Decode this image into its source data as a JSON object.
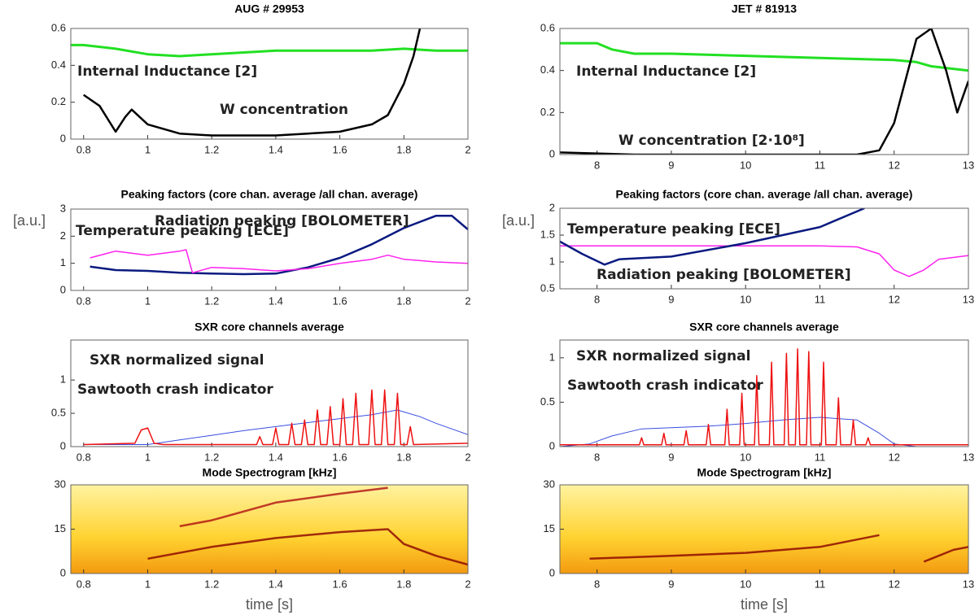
{
  "chart_data": [
    {
      "type": "line",
      "title": "AUG # 29953",
      "xlim": [
        0.76,
        2
      ],
      "xticks": [
        0.8,
        1,
        1.2,
        1.4,
        1.6,
        1.8,
        2
      ],
      "ylim": [
        0,
        0.6
      ],
      "yticks": [
        0,
        0.2,
        0.4,
        0.6
      ],
      "series": [
        {
          "name": "Internal Inductance [2]",
          "color": "#22e022",
          "x": [
            0.76,
            0.8,
            0.9,
            1.0,
            1.1,
            1.2,
            1.3,
            1.4,
            1.5,
            1.6,
            1.7,
            1.8,
            1.9,
            2.0
          ],
          "values": [
            0.51,
            0.51,
            0.49,
            0.46,
            0.45,
            0.46,
            0.47,
            0.48,
            0.48,
            0.48,
            0.48,
            0.49,
            0.48,
            0.48
          ]
        },
        {
          "name": "W concentration",
          "color": "#000000",
          "x": [
            0.8,
            0.85,
            0.9,
            0.93,
            0.95,
            1.0,
            1.1,
            1.2,
            1.3,
            1.4,
            1.5,
            1.6,
            1.7,
            1.75,
            1.8,
            1.83,
            1.85
          ],
          "values": [
            0.24,
            0.18,
            0.04,
            0.12,
            0.16,
            0.08,
            0.03,
            0.02,
            0.02,
            0.02,
            0.03,
            0.04,
            0.08,
            0.13,
            0.3,
            0.45,
            0.6
          ]
        }
      ]
    },
    {
      "type": "line",
      "title": "JET # 81913",
      "xlim": [
        7.5,
        13
      ],
      "xticks": [
        8,
        9,
        10,
        11,
        12,
        13
      ],
      "ylim": [
        0,
        0.6
      ],
      "yticks": [
        0,
        0.2,
        0.4,
        0.6
      ],
      "series": [
        {
          "name": "Internal Inductance [2]",
          "color": "#22e022",
          "x": [
            7.5,
            8.0,
            8.2,
            8.5,
            9,
            10,
            11,
            12,
            12.3,
            12.5,
            13
          ],
          "values": [
            0.53,
            0.53,
            0.5,
            0.48,
            0.48,
            0.47,
            0.46,
            0.45,
            0.44,
            0.42,
            0.4
          ]
        },
        {
          "name": "W concentration [2·10⁸]",
          "color": "#000000",
          "x": [
            7.5,
            8.5,
            9.5,
            10.5,
            11.5,
            11.8,
            12,
            12.3,
            12.5,
            12.7,
            12.85,
            13
          ],
          "values": [
            0.01,
            0.0,
            0.0,
            0.0,
            0.0,
            0.02,
            0.15,
            0.55,
            0.6,
            0.4,
            0.2,
            0.35
          ]
        }
      ]
    },
    {
      "type": "line",
      "title": "Peaking factors (core chan. average /all chan. average)",
      "ylabel": "[a.u.]",
      "xlim": [
        0.76,
        2
      ],
      "xticks": [
        0.8,
        1,
        1.2,
        1.4,
        1.6,
        1.8,
        2
      ],
      "ylim": [
        0,
        3
      ],
      "yticks": [
        0,
        1,
        2,
        3
      ],
      "series": [
        {
          "name": "Radiation peaking [BOLOMETER]",
          "color": "#0a1a80",
          "x": [
            0.82,
            0.9,
            1.0,
            1.1,
            1.2,
            1.3,
            1.4,
            1.5,
            1.6,
            1.7,
            1.8,
            1.9,
            1.95,
            2.0
          ],
          "values": [
            0.88,
            0.75,
            0.72,
            0.65,
            0.62,
            0.6,
            0.62,
            0.85,
            1.2,
            1.7,
            2.3,
            2.75,
            2.75,
            2.25
          ]
        },
        {
          "name": "Temperature peaking [ECE]",
          "color": "#ff22ee",
          "x": [
            0.82,
            0.9,
            1.0,
            1.1,
            1.12,
            1.14,
            1.2,
            1.3,
            1.4,
            1.5,
            1.6,
            1.7,
            1.75,
            1.8,
            1.9,
            2.0
          ],
          "values": [
            1.2,
            1.45,
            1.3,
            1.45,
            1.5,
            0.65,
            0.85,
            0.8,
            0.72,
            0.8,
            1.0,
            1.15,
            1.3,
            1.15,
            1.05,
            1.0
          ]
        }
      ]
    },
    {
      "type": "line",
      "title": "Peaking factors (core chan. average /all chan. average)",
      "ylabel": "[a.u.]",
      "xlim": [
        7.5,
        13
      ],
      "xticks": [
        8,
        9,
        10,
        11,
        12,
        13
      ],
      "ylim": [
        0.5,
        2
      ],
      "yticks": [
        0.5,
        1,
        1.5,
        2
      ],
      "series": [
        {
          "name": "Temperature peaking [ECE]",
          "color": "#ff22ee",
          "x": [
            7.5,
            8,
            10,
            11,
            11.5,
            11.8,
            12,
            12.2,
            12.4,
            12.6,
            13
          ],
          "values": [
            1.3,
            1.3,
            1.3,
            1.3,
            1.28,
            1.15,
            0.85,
            0.73,
            0.85,
            1.05,
            1.12
          ]
        },
        {
          "name": "Radiation peaking [BOLOMETER]",
          "color": "#0a1a80",
          "x": [
            7.5,
            7.8,
            8.1,
            8.3,
            9,
            10,
            11,
            11.6
          ],
          "values": [
            1.38,
            1.15,
            0.95,
            1.05,
            1.1,
            1.35,
            1.65,
            2.0
          ]
        }
      ]
    },
    {
      "type": "line",
      "title": "SXR core channels average",
      "xlim": [
        0.76,
        2
      ],
      "xticks": [
        0.8,
        1,
        1.2,
        1.4,
        1.6,
        1.8,
        2
      ],
      "ylim": [
        0,
        1.6
      ],
      "yticks": [
        0,
        0.5,
        1
      ],
      "series": [
        {
          "name": "SXR normalized signal",
          "color": "#3a4fe0",
          "x": [
            0.8,
            1.0,
            1.1,
            1.2,
            1.3,
            1.4,
            1.5,
            1.6,
            1.7,
            1.78,
            1.85,
            1.9,
            2.0
          ],
          "values": [
            0.03,
            0.03,
            0.1,
            0.17,
            0.24,
            0.3,
            0.36,
            0.42,
            0.48,
            0.55,
            0.45,
            0.35,
            0.18
          ]
        },
        {
          "name": "Sawtooth crash indicator",
          "color": "#ee1111",
          "x": [
            0.8,
            0.96,
            0.98,
            1.0,
            1.02,
            1.05,
            1.34,
            1.35,
            1.36,
            1.39,
            1.4,
            1.41,
            1.44,
            1.45,
            1.46,
            1.48,
            1.49,
            1.5,
            1.52,
            1.53,
            1.54,
            1.56,
            1.57,
            1.58,
            1.6,
            1.61,
            1.62,
            1.64,
            1.65,
            1.66,
            1.69,
            1.7,
            1.71,
            1.73,
            1.74,
            1.75,
            1.77,
            1.78,
            1.79,
            1.81,
            1.82,
            1.83,
            2.0
          ],
          "values": [
            0.03,
            0.05,
            0.25,
            0.28,
            0.05,
            0.03,
            0.03,
            0.15,
            0.03,
            0.03,
            0.28,
            0.03,
            0.03,
            0.35,
            0.03,
            0.03,
            0.4,
            0.03,
            0.03,
            0.55,
            0.03,
            0.03,
            0.6,
            0.03,
            0.03,
            0.72,
            0.03,
            0.03,
            0.8,
            0.03,
            0.03,
            0.85,
            0.03,
            0.03,
            0.85,
            0.03,
            0.03,
            0.8,
            0.03,
            0.03,
            0.3,
            0.03,
            0.05
          ]
        }
      ]
    },
    {
      "type": "line",
      "title": "SXR core channels average",
      "xlim": [
        7.5,
        13
      ],
      "xticks": [
        8,
        9,
        10,
        11,
        12,
        13
      ],
      "ylim": [
        0,
        1.2
      ],
      "yticks": [
        0,
        0.5,
        1
      ],
      "series": [
        {
          "name": "SXR normalized signal",
          "color": "#3a4fe0",
          "x": [
            7.5,
            7.9,
            8.2,
            8.6,
            9.5,
            10,
            10.5,
            11,
            11.5,
            11.8,
            12,
            12.3,
            13
          ],
          "values": [
            0,
            0.03,
            0.12,
            0.2,
            0.23,
            0.26,
            0.3,
            0.33,
            0.3,
            0.15,
            0.03,
            0,
            0
          ]
        },
        {
          "name": "Sawtooth crash indicator",
          "color": "#ee1111",
          "x": [
            7.5,
            8.57,
            8.6,
            8.63,
            8.87,
            8.9,
            8.93,
            9.17,
            9.2,
            9.23,
            9.47,
            9.5,
            9.53,
            9.72,
            9.75,
            9.78,
            9.92,
            9.95,
            9.98,
            10.12,
            10.15,
            10.18,
            10.32,
            10.35,
            10.38,
            10.52,
            10.55,
            10.58,
            10.67,
            10.7,
            10.73,
            10.82,
            10.85,
            10.88,
            11.02,
            11.05,
            11.08,
            11.22,
            11.25,
            11.28,
            11.42,
            11.45,
            11.48,
            11.62,
            11.65,
            11.68,
            13
          ],
          "values": [
            0.02,
            0.02,
            0.1,
            0.02,
            0.02,
            0.15,
            0.02,
            0.02,
            0.18,
            0.02,
            0.02,
            0.25,
            0.02,
            0.02,
            0.42,
            0.02,
            0.02,
            0.6,
            0.02,
            0.02,
            0.8,
            0.02,
            0.02,
            0.95,
            0.02,
            0.02,
            1.05,
            0.02,
            0.02,
            1.1,
            0.02,
            0.02,
            1.07,
            0.02,
            0.02,
            0.95,
            0.02,
            0.02,
            0.55,
            0.02,
            0.02,
            0.3,
            0.02,
            0.02,
            0.1,
            0.02,
            0.02
          ]
        }
      ]
    },
    {
      "type": "spectrogram",
      "title": "Mode  Spectrogram [kHz]",
      "xlabel": "time [s]",
      "xlim": [
        0.76,
        2
      ],
      "xticks": [
        0.8,
        1,
        1.2,
        1.4,
        1.6,
        1.8,
        2
      ],
      "ylim": [
        0,
        30
      ],
      "yticks": [
        0,
        15,
        30
      ],
      "series": [
        {
          "color": "#8a0000",
          "x": [
            1.0,
            1.2,
            1.4,
            1.6,
            1.75,
            1.8,
            1.9,
            2.0
          ],
          "values": [
            5,
            9,
            12,
            14,
            15,
            10,
            6,
            3
          ]
        },
        {
          "color": "#b01010",
          "x": [
            1.1,
            1.2,
            1.4,
            1.6,
            1.75
          ],
          "values": [
            16,
            18,
            24,
            27,
            29
          ]
        }
      ]
    },
    {
      "type": "spectrogram",
      "title": "Mode  Spectrogram [kHz]",
      "xlabel": "time [s]",
      "xlim": [
        7.5,
        13
      ],
      "xticks": [
        8,
        9,
        10,
        11,
        12,
        13
      ],
      "ylim": [
        0,
        30
      ],
      "yticks": [
        0,
        15,
        30
      ],
      "series": [
        {
          "color": "#8a0000",
          "x": [
            7.9,
            9,
            10,
            11,
            11.8
          ],
          "values": [
            5,
            6,
            7,
            9,
            13
          ]
        },
        {
          "color": "#8a0000",
          "x": [
            12.4,
            12.6,
            12.8,
            13
          ],
          "values": [
            4,
            6,
            8,
            9
          ]
        }
      ]
    }
  ]
}
